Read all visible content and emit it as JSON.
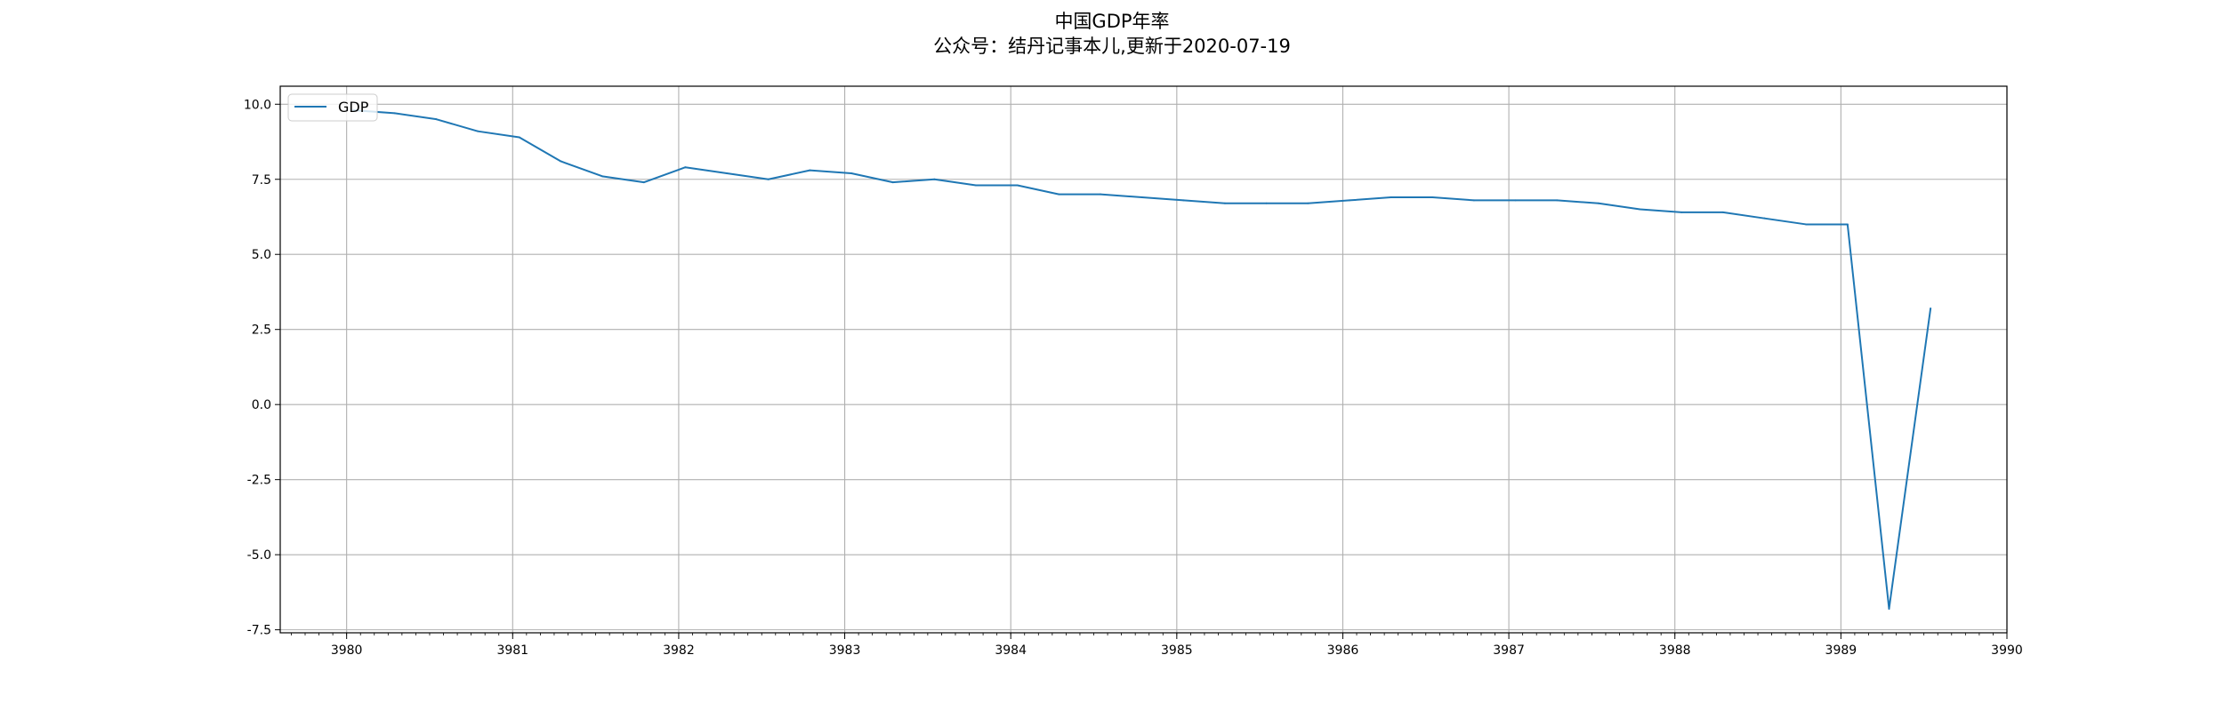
{
  "figure": {
    "title": "中国GDP年率",
    "subtitle": "公众号：结丹记事本儿,更新于2020-07-19"
  },
  "chart_data": {
    "type": "line",
    "title": "中国GDP年率",
    "subtitle": "公众号：结丹记事本儿,更新于2020-07-19",
    "xlabel": "",
    "ylabel": "",
    "xlim": [
      3979.6,
      3990.0
    ],
    "ylim": [
      -7.6,
      10.6
    ],
    "x_ticks": [
      3980,
      3981,
      3982,
      3983,
      3984,
      3985,
      3986,
      3987,
      3988,
      3989,
      3990
    ],
    "x_tick_labels": [
      "3980",
      "3981",
      "3982",
      "3983",
      "3984",
      "3985",
      "3986",
      "3987",
      "3988",
      "3989",
      "3990"
    ],
    "y_ticks": [
      10.0,
      7.5,
      5.0,
      2.5,
      0.0,
      -2.5,
      -5.0,
      -7.5
    ],
    "y_tick_labels": [
      "10.0",
      "7.5",
      "5.0",
      "2.5",
      "0.0",
      "-2.5",
      "-5.0",
      "-7.5"
    ],
    "grid": true,
    "legend_position": "upper-left",
    "series": [
      {
        "name": "GDP",
        "color": "#1f77b4",
        "x": [
          3980.04,
          3980.29,
          3980.54,
          3980.79,
          3981.04,
          3981.29,
          3981.54,
          3981.79,
          3982.04,
          3982.29,
          3982.54,
          3982.79,
          3983.04,
          3983.29,
          3983.54,
          3983.79,
          3984.04,
          3984.29,
          3984.54,
          3984.79,
          3985.04,
          3985.29,
          3985.54,
          3985.79,
          3986.04,
          3986.29,
          3986.54,
          3986.79,
          3987.04,
          3987.29,
          3987.54,
          3987.79,
          3988.04,
          3988.29,
          3988.54,
          3988.79,
          3989.04,
          3989.29,
          3989.54
        ],
        "values": [
          9.8,
          9.7,
          9.5,
          9.1,
          8.9,
          8.1,
          7.6,
          7.4,
          7.9,
          7.7,
          7.5,
          7.8,
          7.7,
          7.4,
          7.5,
          7.3,
          7.3,
          7.0,
          7.0,
          6.9,
          6.8,
          6.7,
          6.7,
          6.7,
          6.8,
          6.9,
          6.9,
          6.8,
          6.8,
          6.8,
          6.7,
          6.5,
          6.4,
          6.4,
          6.2,
          6.0,
          6.0,
          -6.8,
          3.2
        ]
      }
    ]
  }
}
